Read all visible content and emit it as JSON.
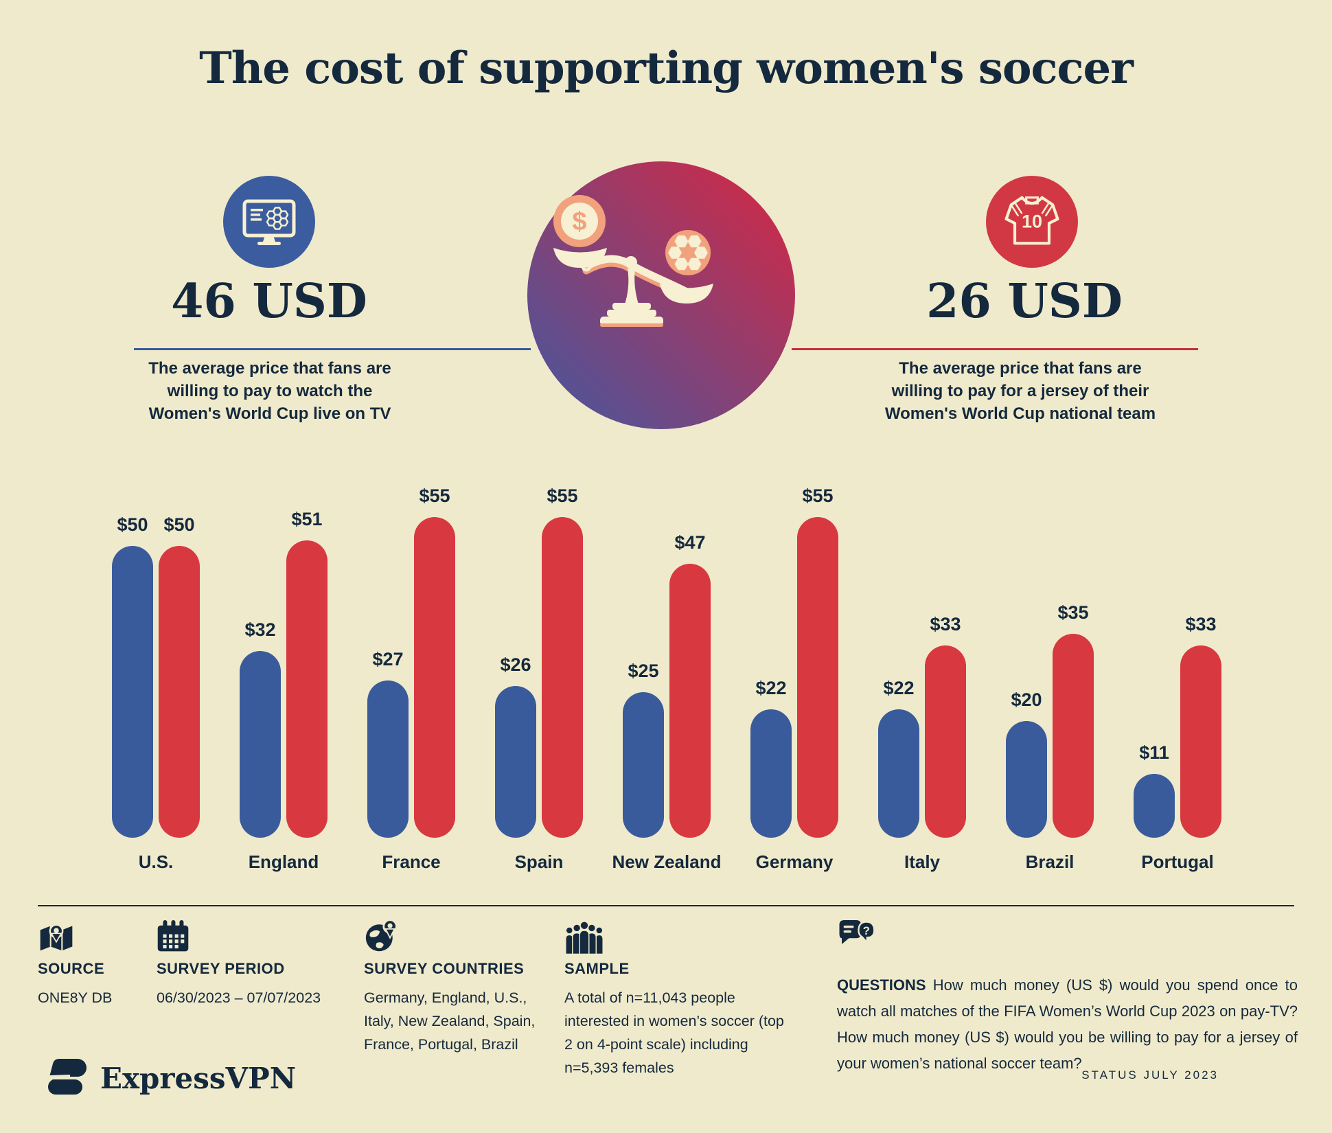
{
  "title": "The cost of supporting women's soccer",
  "stats": {
    "tv": {
      "value": "46 USD",
      "description": "The average price that fans are willing to pay to watch the Women's World Cup live on TV",
      "icon": "tv-soccer-icon"
    },
    "jersey": {
      "value": "26 USD",
      "description": "The average price that fans are willing to pay for a jersey of their Women's World Cup national team",
      "icon": "jersey-icon",
      "jersey_number": "10"
    },
    "center_icon": "balance-scale-money-vs-soccer"
  },
  "chart_data": {
    "type": "bar",
    "categories": [
      "U.S.",
      "England",
      "France",
      "Spain",
      "New Zealand",
      "Germany",
      "Italy",
      "Brazil",
      "Portugal"
    ],
    "series": [
      {
        "name": "pay-tv-price",
        "color": "#3A5B9B",
        "values": [
          50,
          32,
          27,
          26,
          25,
          22,
          22,
          20,
          11
        ]
      },
      {
        "name": "jersey-price",
        "color": "#D8383F",
        "values": [
          50,
          51,
          55,
          55,
          47,
          55,
          33,
          35,
          33
        ]
      }
    ],
    "value_prefix": "$",
    "ylim": [
      0,
      55
    ],
    "grid": false,
    "legend_position": "none"
  },
  "footer": {
    "source": {
      "label": "SOURCE",
      "value": "ONE8Y DB",
      "icon": "map-pin-icon"
    },
    "survey_period": {
      "label": "SURVEY PERIOD",
      "value": "06/30/2023 – 07/07/2023",
      "icon": "calendar-icon"
    },
    "survey_countries": {
      "label": "SURVEY COUNTRIES",
      "value": "Germany, England, U.S., Italy, New Zealand, Spain, France, Portugal, Brazil",
      "icon": "globe-pin-icon"
    },
    "sample": {
      "label": "SAMPLE",
      "value": "A total of n=11,043 people interested in women’s soccer (top 2 on 4-point scale) including n=5,393 females",
      "icon": "people-group-icon"
    },
    "questions": {
      "label": "QUESTIONS",
      "value": "How much money (US $) would you spend once to watch all matches of the FIFA Women’s World Cup 2023 on pay-TV? How much money (US $) would you be willing to pay for a jersey of your women’s national soccer team?",
      "icon": "speech-bubbles-icon"
    }
  },
  "branding": {
    "logo_text": "ExpressVPN",
    "status": "STATUS JULY 2023"
  },
  "colors": {
    "background": "#F0EACC",
    "text": "#14293D",
    "bar_blue": "#3A5B9B",
    "bar_red": "#D8383F",
    "circle_blue": "#3B5C9E",
    "circle_red": "#D23843",
    "gradient_start": "#4E5499",
    "gradient_end": "#C72C4C",
    "figure_cream": "#F7F0D2",
    "figure_salmon": "#F2A17D"
  }
}
